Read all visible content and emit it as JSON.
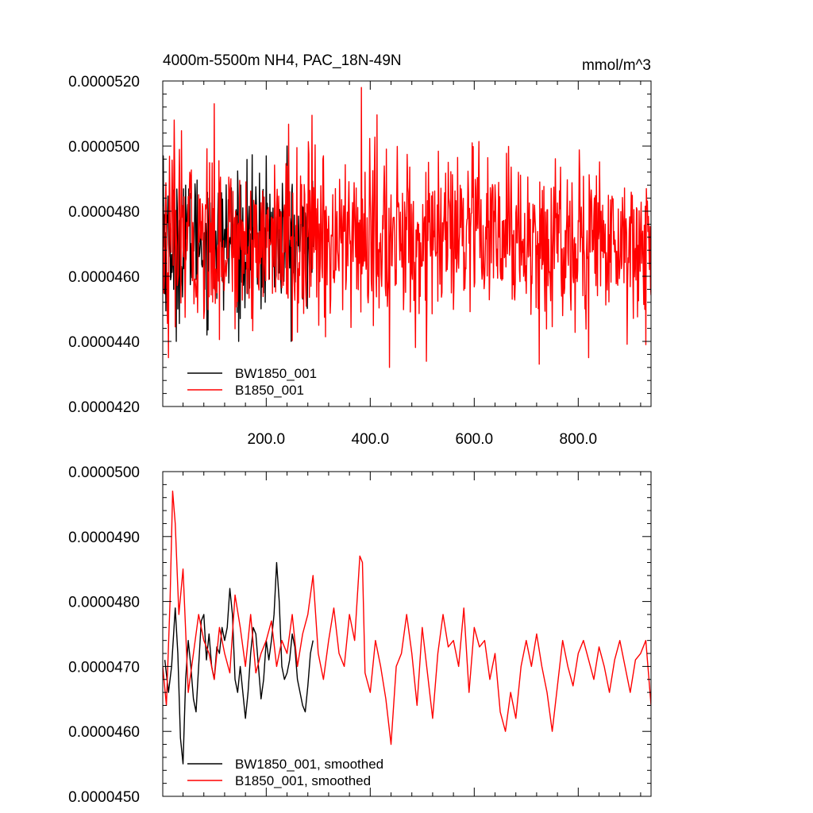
{
  "chart_data": [
    {
      "type": "line",
      "title": "4000m-5500m NH4, PAC_18N-49N",
      "units": "mmol/m^3",
      "xlim": [
        1,
        940
      ],
      "ylim": [
        4.2e-05,
        5.2e-05
      ],
      "xticks": [
        200,
        400,
        600,
        800
      ],
      "xtick_labels": [
        "200.0",
        "400.0",
        "600.0",
        "800.0"
      ],
      "yticks": [
        4.2e-05,
        4.4e-05,
        4.6e-05,
        4.8e-05,
        5e-05,
        5.2e-05
      ],
      "ytick_labels": [
        "0.0000420",
        "0.0000440",
        "0.0000460",
        "0.0000480",
        "0.0000500",
        "0.0000520"
      ],
      "legend_position": "bottom-left",
      "series": [
        {
          "name": "BW1850_001",
          "color": "#000000",
          "x_range": [
            1,
            290
          ],
          "y_stats": {
            "mean": 4.71e-05,
            "min": 4.4e-05,
            "max": 5.06e-05
          },
          "y_peaks": [
            [
              2,
              4.97e-05
            ],
            [
              27,
              4.4e-05
            ],
            [
              45,
              4.88e-05
            ],
            [
              82,
              4.56e-05
            ],
            [
              100,
              4.9e-05
            ],
            [
              150,
              4.47e-05
            ],
            [
              190,
              4.5e-05
            ],
            [
              200,
              4.97e-05
            ],
            [
              225,
              4.61e-05
            ],
            [
              240,
              5e-05
            ],
            [
              270,
              4.53e-05
            ],
            [
              290,
              4.69e-05
            ]
          ]
        },
        {
          "name": "B1850_001",
          "color": "#ff0000",
          "x_range": [
            1,
            940
          ],
          "y_stats": {
            "mean": 4.71e-05,
            "min": 4.32e-05,
            "max": 5.18e-05
          },
          "y_peaks": [
            [
              12,
              4.35e-05
            ],
            [
              23,
              5.08e-05
            ],
            [
              80,
              4.47e-05
            ],
            [
              100,
              5.13e-05
            ],
            [
              383,
              5.18e-05
            ],
            [
              437,
              4.32e-05
            ],
            [
              725,
              4.33e-05
            ],
            [
              820,
              4.35e-05
            ],
            [
              930,
              4.39e-05
            ]
          ]
        }
      ]
    },
    {
      "type": "line",
      "xlim": [
        1,
        940
      ],
      "ylim": [
        4.5e-05,
        5e-05
      ],
      "xticks": [
        200,
        400,
        600,
        800
      ],
      "yticks": [
        4.5e-05,
        4.6e-05,
        4.7e-05,
        4.8e-05,
        4.9e-05,
        5e-05
      ],
      "ytick_labels": [
        "0.0000450",
        "0.0000460",
        "0.0000470",
        "0.0000480",
        "0.0000490",
        "0.0000500"
      ],
      "legend_position": "bottom-left",
      "series": [
        {
          "name": "BW1850_001, smoothed",
          "color": "#000000",
          "x": [
            5,
            12,
            18,
            25,
            30,
            35,
            40,
            45,
            50,
            55,
            60,
            65,
            70,
            75,
            80,
            85,
            90,
            95,
            100,
            105,
            110,
            115,
            120,
            125,
            130,
            135,
            140,
            145,
            150,
            155,
            160,
            165,
            170,
            175,
            180,
            185,
            190,
            195,
            200,
            205,
            210,
            215,
            220,
            225,
            230,
            235,
            240,
            245,
            250,
            255,
            260,
            265,
            270,
            275,
            280,
            285,
            290
          ],
          "y": [
            4.71e-05,
            4.66e-05,
            4.7e-05,
            4.79e-05,
            4.72e-05,
            4.59e-05,
            4.55e-05,
            4.68e-05,
            4.74e-05,
            4.7e-05,
            4.65e-05,
            4.63e-05,
            4.7e-05,
            4.77e-05,
            4.78e-05,
            4.71e-05,
            4.75e-05,
            4.7e-05,
            4.68e-05,
            4.73e-05,
            4.72e-05,
            4.76e-05,
            4.74e-05,
            4.76e-05,
            4.82e-05,
            4.78e-05,
            4.68e-05,
            4.66e-05,
            4.7e-05,
            4.66e-05,
            4.62e-05,
            4.66e-05,
            4.72e-05,
            4.76e-05,
            4.75e-05,
            4.7e-05,
            4.65e-05,
            4.68e-05,
            4.74e-05,
            4.71e-05,
            4.74e-05,
            4.78e-05,
            4.86e-05,
            4.8e-05,
            4.7e-05,
            4.68e-05,
            4.69e-05,
            4.71e-05,
            4.75e-05,
            4.73e-05,
            4.68e-05,
            4.66e-05,
            4.64e-05,
            4.63e-05,
            4.67e-05,
            4.72e-05,
            4.74e-05
          ]
        },
        {
          "name": "B1850_001, smoothed",
          "color": "#ff0000",
          "x": [
            1,
            8,
            15,
            20,
            25,
            32,
            40,
            50,
            60,
            70,
            80,
            90,
            100,
            110,
            120,
            130,
            140,
            150,
            160,
            170,
            180,
            190,
            200,
            210,
            220,
            230,
            240,
            250,
            260,
            270,
            280,
            290,
            300,
            310,
            320,
            330,
            340,
            350,
            360,
            370,
            380,
            385,
            390,
            400,
            410,
            420,
            430,
            440,
            450,
            460,
            470,
            480,
            490,
            500,
            510,
            520,
            530,
            540,
            550,
            560,
            570,
            580,
            590,
            600,
            610,
            620,
            630,
            640,
            650,
            660,
            670,
            680,
            690,
            700,
            710,
            720,
            730,
            740,
            750,
            760,
            770,
            780,
            790,
            800,
            810,
            820,
            830,
            840,
            850,
            860,
            870,
            880,
            890,
            900,
            910,
            920,
            930,
            940
          ],
          "y": [
            4.7e-05,
            4.64e-05,
            4.8e-05,
            4.97e-05,
            4.92e-05,
            4.78e-05,
            4.85e-05,
            4.66e-05,
            4.72e-05,
            4.78e-05,
            4.74e-05,
            4.72e-05,
            4.68e-05,
            4.76e-05,
            4.72e-05,
            4.69e-05,
            4.81e-05,
            4.76e-05,
            4.7e-05,
            4.78e-05,
            4.69e-05,
            4.72e-05,
            4.74e-05,
            4.77e-05,
            4.7e-05,
            4.74e-05,
            4.72e-05,
            4.78e-05,
            4.7e-05,
            4.75e-05,
            4.78e-05,
            4.84e-05,
            4.72e-05,
            4.68e-05,
            4.74e-05,
            4.79e-05,
            4.72e-05,
            4.7e-05,
            4.78e-05,
            4.74e-05,
            4.87e-05,
            4.86e-05,
            4.69e-05,
            4.66e-05,
            4.74e-05,
            4.7e-05,
            4.65e-05,
            4.58e-05,
            4.7e-05,
            4.72e-05,
            4.78e-05,
            4.72e-05,
            4.64e-05,
            4.76e-05,
            4.69e-05,
            4.62e-05,
            4.72e-05,
            4.78e-05,
            4.73e-05,
            4.74e-05,
            4.7e-05,
            4.79e-05,
            4.66e-05,
            4.76e-05,
            4.73e-05,
            4.74e-05,
            4.68e-05,
            4.72e-05,
            4.63e-05,
            4.6e-05,
            4.66e-05,
            4.62e-05,
            4.7e-05,
            4.74e-05,
            4.7e-05,
            4.75e-05,
            4.7e-05,
            4.66e-05,
            4.6e-05,
            4.67e-05,
            4.74e-05,
            4.7e-05,
            4.67e-05,
            4.72e-05,
            4.74e-05,
            4.71e-05,
            4.68e-05,
            4.73e-05,
            4.7e-05,
            4.66e-05,
            4.71e-05,
            4.74e-05,
            4.7e-05,
            4.66e-05,
            4.71e-05,
            4.72e-05,
            4.74e-05,
            4.64e-05
          ]
        }
      ]
    }
  ]
}
